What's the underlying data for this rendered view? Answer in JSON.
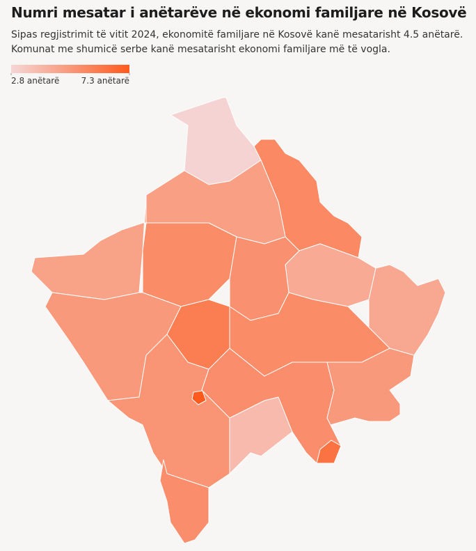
{
  "map": {
    "type": "choropleth",
    "title": "Numri mesatar i anëtarëve në ekonomi familjare në Kosovë",
    "subtitle": [
      "Sipas regjistrimit të vitit 2024, ekonomitë familjare në Kosovë kanë mesatarisht 4.5 anëtarë.",
      "Komunat me shumicë serbe kanë mesatarisht ekonomi familjare më të vogla."
    ],
    "legend": {
      "colors": [
        "#f5d6d6",
        "#fd5a1e"
      ],
      "ticks": [
        {
          "value": 2.8,
          "label": "2.8 anëtarë"
        },
        {
          "value": 7.3,
          "label": "7.3 anëtarë"
        }
      ]
    },
    "values": [
      2.9,
      5.6,
      4.8,
      4.7,
      5.5,
      4.4,
      4.5,
      5.3,
      6.0,
      5.0,
      5.5,
      5.2,
      5.4,
      3.8,
      5.4,
      5.0,
      7.3,
      6.4
    ]
  }
}
